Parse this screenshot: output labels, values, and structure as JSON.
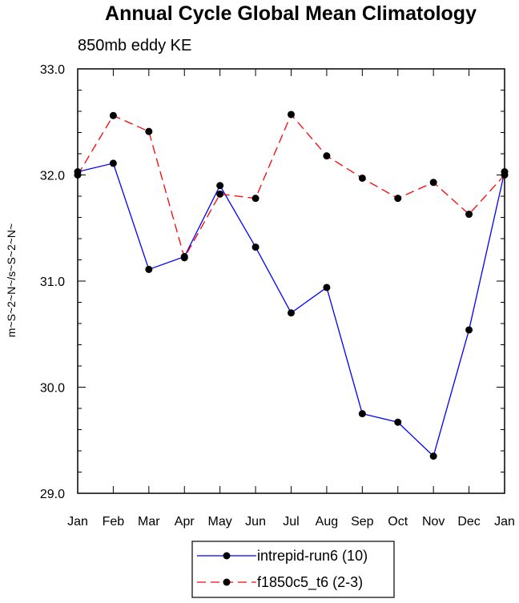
{
  "chart_data": {
    "type": "line",
    "title": "Annual Cycle Global Mean Climatology",
    "subtitle": "850mb eddy KE",
    "xlabel": "",
    "ylabel": "m~S~2~N~/s~S~2~N~",
    "categories": [
      "Jan",
      "Feb",
      "Mar",
      "Apr",
      "May",
      "Jun",
      "Jul",
      "Aug",
      "Sep",
      "Oct",
      "Nov",
      "Dec",
      "Jan"
    ],
    "ylim": [
      29.0,
      33.0
    ],
    "yticks": [
      "29.0",
      "30.0",
      "31.0",
      "32.0",
      "33.0"
    ],
    "series": [
      {
        "name": "intrepid-run6 (10)",
        "color": "#0000ff",
        "dash": "solid",
        "values": [
          32.03,
          32.11,
          31.11,
          31.23,
          31.9,
          31.32,
          30.7,
          30.94,
          29.75,
          29.67,
          29.35,
          30.54,
          32.03
        ]
      },
      {
        "name": "f1850c5_t6 (2-3)",
        "color": "#ff0000",
        "dash": "dashed",
        "values": [
          32.0,
          32.56,
          32.41,
          31.22,
          31.82,
          31.78,
          32.57,
          32.18,
          31.97,
          31.78,
          31.93,
          31.63,
          32.0
        ]
      }
    ],
    "legend": "bottom-center",
    "grid": false
  }
}
